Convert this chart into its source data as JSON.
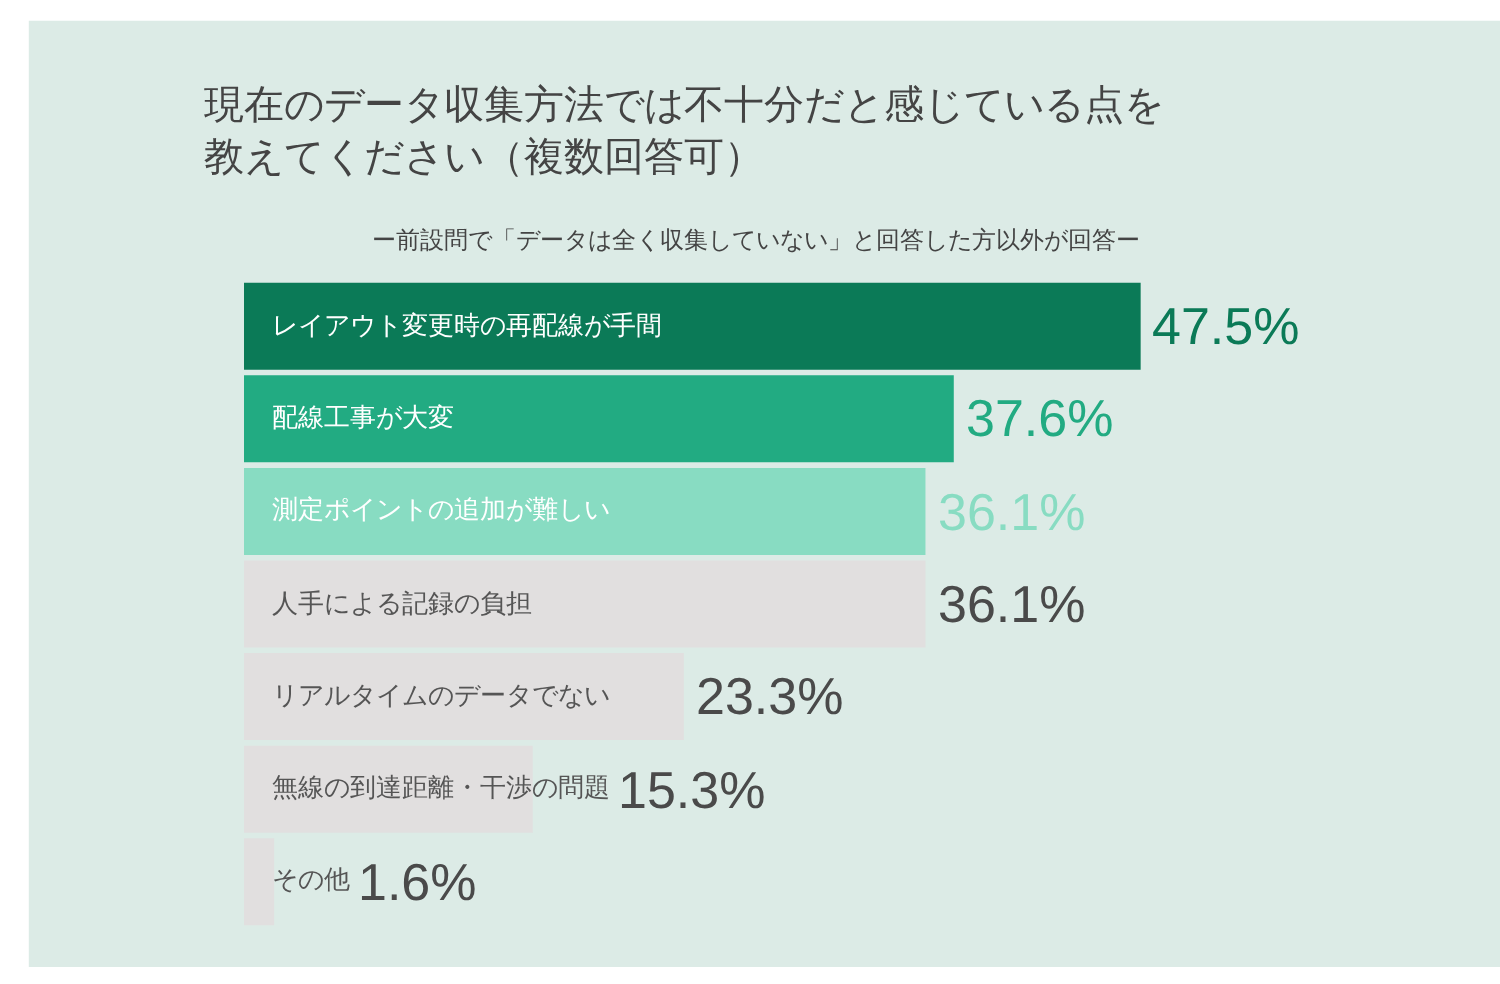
{
  "chart_data": {
    "type": "bar",
    "orientation": "horizontal",
    "title": "現在のデータ収集方法では不十分だと感じている点を教えてください（複数回答可）",
    "subtitle": "ー前設問で「データは全く収集していない」と回答した方以外が回答ー",
    "categories": [
      "レイアウト変更時の再配線が手間",
      "配線工事が大変",
      "測定ポイントの追加が難しい",
      "人手による記録の負担",
      "リアルタイムのデータでない",
      "無線の到達距離・干渉の問題",
      "その他"
    ],
    "values": [
      47.5,
      37.6,
      36.1,
      36.1,
      23.3,
      15.3,
      1.6
    ],
    "value_labels": [
      "47.5%",
      "37.6%",
      "36.1%",
      "36.1%",
      "23.3%",
      "15.3%",
      "1.6%"
    ],
    "colors": [
      "#0b7a57",
      "#22ab82",
      "#88dcc2",
      "#e1dfdf",
      "#e1dfdf",
      "#e1dfdf",
      "#e1dfdf"
    ],
    "grid": false,
    "legend": false
  }
}
